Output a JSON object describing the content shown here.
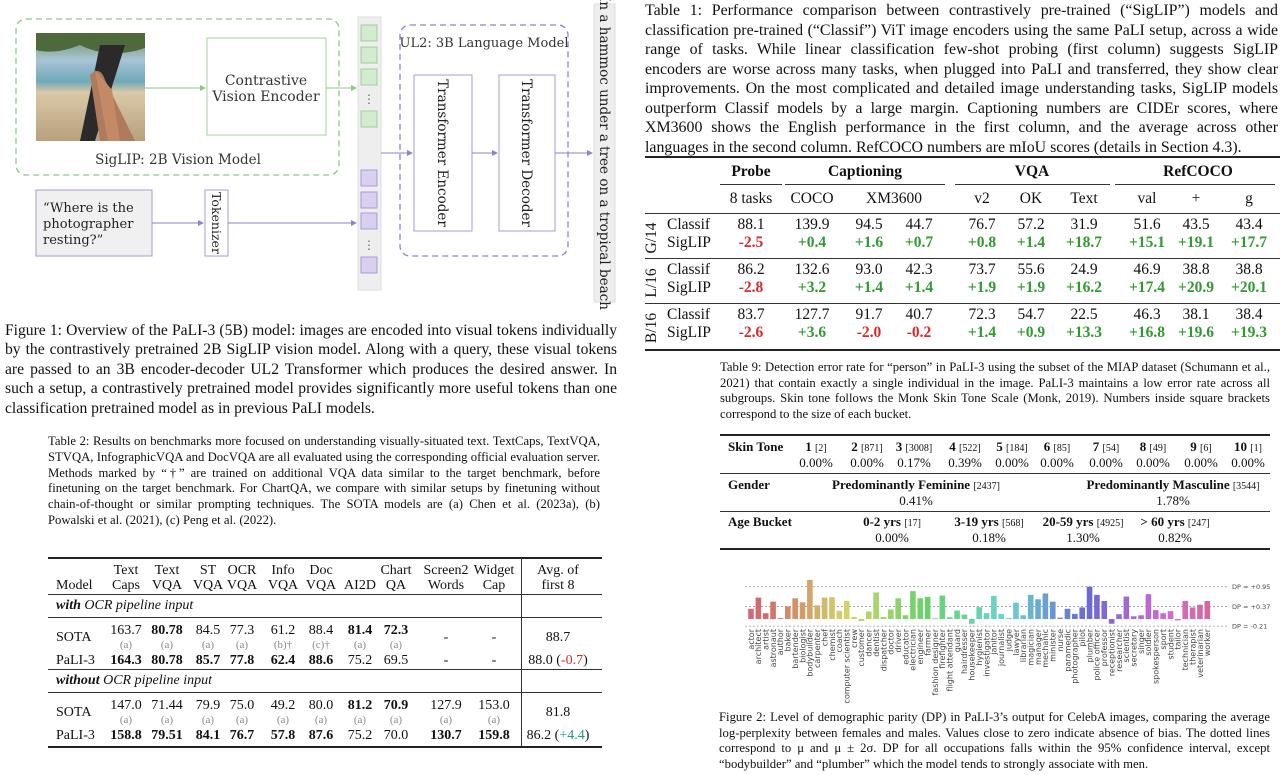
{
  "figure1": {
    "vision_model_label": "SigLIP: 2B Vision Model",
    "vision_encoder_label": [
      "Contrastive",
      "Vision Encoder"
    ],
    "language_model_label": "UL2: 3B Language Model",
    "transformer_encoder_label": "Transformer Encoder",
    "transformer_decoder_label": "Transformer Decoder",
    "tokenizer_label": "Tokenizer",
    "query_lines": [
      "“Where is the",
      "photographer",
      "resting?”"
    ],
    "output_text": "“In a hammoc under a tree on a tropical beach”",
    "token_dots": "⋮",
    "colors": {
      "vision": "#8fc78b",
      "language": "#8e82cf",
      "vision_token": "#d3ecd0",
      "text_token": "#d8d0ee"
    },
    "caption": "Figure 1: Overview of the PaLI-3 (5B) model: images are encoded into visual tokens individually by the contrastively pretrained 2B SigLIP vision model. Along with a query, these visual tokens are passed to an 3B encoder-decoder UL2 Transformer which produces the desired answer. In such a setup, a contrastively pretrained model provides significantly more useful tokens than one classification pretrained model as in previous PaLI models."
  },
  "table1": {
    "caption": "Table 1: Performance comparison between contrastively pre-trained (“SigLIP”) models and classification pre-trained (“Classif”) ViT image encoders using the same PaLI setup, across a wide range of tasks. While linear classification few-shot probing (first column) suggests SigLIP encoders are worse across many tasks, when plugged into PaLI and transferred, they show clear improvements. On the most complicated and detailed image understanding tasks, SigLIP models outperform Classif models by a large margin. Captioning numbers are CIDEr scores, where XM3600 shows the English performance in the first column, and the average across other languages in the second column. RefCOCO numbers are mIoU scores (details in Section 4.3).",
    "group_headers": [
      "Probe",
      "Captioning",
      "VQA",
      "RefCOCO"
    ],
    "sub_headers": [
      "8 tasks",
      "COCO",
      "XM3600",
      "v2",
      "OK",
      "Text",
      "val",
      "+",
      "g"
    ],
    "colors": {
      "positive": "#2f9a2f",
      "negative": "#d62a2a"
    },
    "blocks": [
      {
        "group": "G/14",
        "rows": [
          {
            "model": "Classif",
            "values": [
              "88.1",
              "139.9",
              "94.5",
              "44.7",
              "76.7",
              "57.2",
              "31.9",
              "51.6",
              "43.5",
              "43.4"
            ]
          },
          {
            "model": "SigLIP",
            "values": [
              "-2.5",
              "+0.4",
              "+1.6",
              "+0.7",
              "+0.8",
              "+1.4",
              "+18.7",
              "+15.1",
              "+19.1",
              "+17.7"
            ]
          }
        ]
      },
      {
        "group": "L/16",
        "rows": [
          {
            "model": "Classif",
            "values": [
              "86.2",
              "132.6",
              "93.0",
              "42.3",
              "73.7",
              "55.6",
              "24.9",
              "46.9",
              "38.8",
              "38.8"
            ]
          },
          {
            "model": "SigLIP",
            "values": [
              "-2.8",
              "+3.2",
              "+1.4",
              "+1.4",
              "+1.9",
              "+1.9",
              "+16.2",
              "+17.4",
              "+20.9",
              "+20.1"
            ]
          }
        ]
      },
      {
        "group": "B/16",
        "rows": [
          {
            "model": "Classif",
            "values": [
              "83.7",
              "127.7",
              "91.7",
              "40.7",
              "72.3",
              "54.7",
              "22.5",
              "46.3",
              "38.1",
              "38.4"
            ]
          },
          {
            "model": "SigLIP",
            "values": [
              "-2.6",
              "+3.6",
              "-2.0",
              "-0.2",
              "+1.4",
              "+0.9",
              "+13.3",
              "+16.8",
              "+19.6",
              "+19.3"
            ]
          }
        ]
      }
    ]
  },
  "table2": {
    "caption": "Table 2: Results on benchmarks more focused on understanding visually-situated text. TextCaps, TextVQA, STVQA, InfographicVQA and DocVQA are all evaluated using the corresponding official evaluation server. Methods marked by “†” are trained on additional VQA data similar to the target benchmark, before finetuning on the target benchmark. For ChartQA, we compare with similar setups by finetuning without chain-of-thought or similar prompting techniques. The SOTA models are (a) Chen et al. (2023a), (b) Powalski et al. (2021), (c) Peng et al. (2022).",
    "columns": [
      [
        "",
        "Model"
      ],
      [
        "Text",
        "Caps"
      ],
      [
        "Text",
        "VQA"
      ],
      [
        "ST",
        "VQA"
      ],
      [
        "OCR",
        "VQA"
      ],
      [
        "Info",
        "VQA"
      ],
      [
        "Doc",
        "VQA"
      ],
      [
        "",
        "AI2D"
      ],
      [
        "Chart",
        "QA"
      ],
      [
        "Screen2",
        "Words"
      ],
      [
        "Widget",
        "Cap"
      ],
      [
        "Avg. of",
        "first 8"
      ]
    ],
    "colors": {
      "negative": "#d62a2a",
      "positive": "#1c9a8c"
    },
    "sections": [
      {
        "title_bold": "with",
        "title_rest": " OCR pipeline input",
        "rows": [
          {
            "model": "SOTA",
            "cells": [
              {
                "v": "163.7",
                "b": false,
                "src": "(a)"
              },
              {
                "v": "80.78",
                "b": true,
                "src": "(a)"
              },
              {
                "v": "84.5",
                "b": false,
                "src": "(a)"
              },
              {
                "v": "77.3",
                "b": false,
                "src": "(a)"
              },
              {
                "v": "61.2",
                "b": false,
                "src": "(b)†"
              },
              {
                "v": "88.4",
                "b": false,
                "src": "(c)†"
              },
              {
                "v": "81.4",
                "b": true,
                "src": "(a)"
              },
              {
                "v": "72.3",
                "b": true,
                "src": "(a)"
              },
              {
                "v": "-",
                "b": false,
                "src": ""
              },
              {
                "v": "-",
                "b": false,
                "src": ""
              }
            ],
            "avg": "88.7",
            "delta": ""
          },
          {
            "model": "PaLI-3",
            "cells": [
              {
                "v": "164.3",
                "b": true
              },
              {
                "v": "80.78",
                "b": true
              },
              {
                "v": "85.7",
                "b": true
              },
              {
                "v": "77.8",
                "b": true
              },
              {
                "v": "62.4",
                "b": true
              },
              {
                "v": "88.6",
                "b": true
              },
              {
                "v": "75.2",
                "b": false
              },
              {
                "v": "69.5",
                "b": false
              },
              {
                "v": "-",
                "b": false
              },
              {
                "v": "-",
                "b": false
              }
            ],
            "avg": "88.0",
            "delta": "-0.7"
          }
        ]
      },
      {
        "title_bold": "without",
        "title_rest": " OCR pipeline input",
        "rows": [
          {
            "model": "SOTA",
            "cells": [
              {
                "v": "147.0",
                "b": false,
                "src": "(a)"
              },
              {
                "v": "71.44",
                "b": false,
                "src": "(a)"
              },
              {
                "v": "79.9",
                "b": false,
                "src": "(a)"
              },
              {
                "v": "75.0",
                "b": false,
                "src": "(a)"
              },
              {
                "v": "49.2",
                "b": false,
                "src": "(a)"
              },
              {
                "v": "80.0",
                "b": false,
                "src": "(a)"
              },
              {
                "v": "81.2",
                "b": true,
                "src": "(a)"
              },
              {
                "v": "70.9",
                "b": true,
                "src": "(a)"
              },
              {
                "v": "127.9",
                "b": false,
                "src": "(a)"
              },
              {
                "v": "153.0",
                "b": false,
                "src": "(a)"
              }
            ],
            "avg": "81.8",
            "delta": ""
          },
          {
            "model": "PaLI-3",
            "cells": [
              {
                "v": "158.8",
                "b": true
              },
              {
                "v": "79.51",
                "b": true
              },
              {
                "v": "84.1",
                "b": true
              },
              {
                "v": "76.7",
                "b": true
              },
              {
                "v": "57.8",
                "b": true
              },
              {
                "v": "87.6",
                "b": true
              },
              {
                "v": "75.2",
                "b": false
              },
              {
                "v": "70.0",
                "b": false
              },
              {
                "v": "130.7",
                "b": true
              },
              {
                "v": "159.8",
                "b": true
              }
            ],
            "avg": "86.2",
            "delta": "+4.4"
          }
        ]
      }
    ]
  },
  "table9": {
    "caption": "Table 9: Detection error rate for “person” in PaLI-3 using the subset of the MIAP dataset (Schumann et al., 2021) that contain exactly a single individual in the image. PaLI-3 maintains a low error rate across all subgroups. Skin tone follows the Monk Skin Tone Scale (Monk, 2019). Numbers inside square brackets correspond to the size of each bucket.",
    "rows": [
      {
        "label": "Skin Tone",
        "items": [
          {
            "name": "1",
            "count": "[2]",
            "value": "0.00%"
          },
          {
            "name": "2",
            "count": "[871]",
            "value": "0.00%"
          },
          {
            "name": "3",
            "count": "[3008]",
            "value": "0.17%"
          },
          {
            "name": "4",
            "count": "[522]",
            "value": "0.39%"
          },
          {
            "name": "5",
            "count": "[184]",
            "value": "0.00%"
          },
          {
            "name": "6",
            "count": "[85]",
            "value": "0.00%"
          },
          {
            "name": "7",
            "count": "[54]",
            "value": "0.00%"
          },
          {
            "name": "8",
            "count": "[49]",
            "value": "0.00%"
          },
          {
            "name": "9",
            "count": "[6]",
            "value": "0.00%"
          },
          {
            "name": "10",
            "count": "[1]",
            "value": "0.00%"
          }
        ]
      },
      {
        "label": "Gender",
        "items": [
          {
            "name": "Predominantly Feminine",
            "count": "[2437]",
            "value": "0.41%"
          },
          {
            "name": "Predominantly Masculine",
            "count": "[3544]",
            "value": "1.78%"
          }
        ]
      },
      {
        "label": "Age Bucket",
        "items": [
          {
            "name": "0-2 yrs",
            "count": "[17]",
            "value": "0.00%"
          },
          {
            "name": "3-19 yrs",
            "count": "[568]",
            "value": "0.18%"
          },
          {
            "name": "20-59 yrs",
            "count": "[4925]",
            "value": "1.30%"
          },
          {
            "name": "> 60 yrs",
            "count": "[247]",
            "value": "0.82%"
          }
        ]
      }
    ]
  },
  "chart_data": {
    "type": "bar",
    "title": "",
    "xlabel": "",
    "ylabel": "",
    "grid": false,
    "categories": [
      "actor",
      "architect",
      "artist",
      "astronaut",
      "author",
      "baker",
      "bartender",
      "biologist",
      "bodybuilder",
      "carpenter",
      "chef",
      "chemist",
      "coach",
      "computer scientist",
      "crew",
      "customer",
      "dancer",
      "dentist",
      "dispatcher",
      "doctor",
      "driver",
      "educator",
      "electrician",
      "engineer",
      "farmer",
      "fashion designer",
      "firefighter",
      "flight attendant",
      "guard",
      "hairdresser",
      "housekeeper",
      "hygienist",
      "investigator",
      "janitor",
      "journalist",
      "judge",
      "lawyer",
      "librarian",
      "magician",
      "manager",
      "mechanic",
      "minister",
      "nurse",
      "paramedic",
      "photographer",
      "pilot",
      "plumber",
      "police officer",
      "professor",
      "receptionist",
      "researcher",
      "scientist",
      "secretary",
      "singer",
      "soldier",
      "spokesperson",
      "sport",
      "student",
      "tailor",
      "technician",
      "therapist",
      "veterinarian",
      "worker"
    ],
    "values": [
      0.3,
      0.63,
      0.17,
      0.51,
      0.03,
      0.37,
      0.61,
      0.49,
      1.15,
      0.4,
      0.63,
      0.64,
      0.24,
      0.53,
      0.06,
      -0.06,
      0.22,
      0.78,
      0.06,
      0.28,
      0.61,
      0.11,
      0.82,
      0.61,
      0.65,
      0.02,
      0.69,
      0.05,
      0.25,
      0.13,
      -0.14,
      0.35,
      0.17,
      0.68,
      0.15,
      0.03,
      0.48,
      0.11,
      0.71,
      0.58,
      0.75,
      0.51,
      0.04,
      0.3,
      0.15,
      0.34,
      0.95,
      0.71,
      0.53,
      -0.14,
      0.14,
      0.66,
      0.08,
      0.11,
      0.73,
      0.26,
      0.17,
      0.23,
      -0.04,
      0.53,
      0.34,
      0.42,
      0.53
    ],
    "reference_lines": [
      {
        "value": 0.95,
        "label": "DP = +0.95"
      },
      {
        "value": 0.37,
        "label": "DP = +0.37"
      },
      {
        "value": -0.21,
        "label": "DP = -0.21"
      }
    ],
    "palette": "husl rainbow (pink → orange → green → teal → blue → purple → pink)",
    "caption": "Figure 2: Level of demographic parity (DP) in PaLI-3’s output for CelebA images, comparing the average log-perplexity between females and males. Values close to zero indicate absence of bias. The dotted lines correspond to μ and μ ± 2σ. DP for all occupations falls within the 95% confidence interval, except “bodybuilder” and “plumber” which the model tends to strongly associate with men."
  }
}
